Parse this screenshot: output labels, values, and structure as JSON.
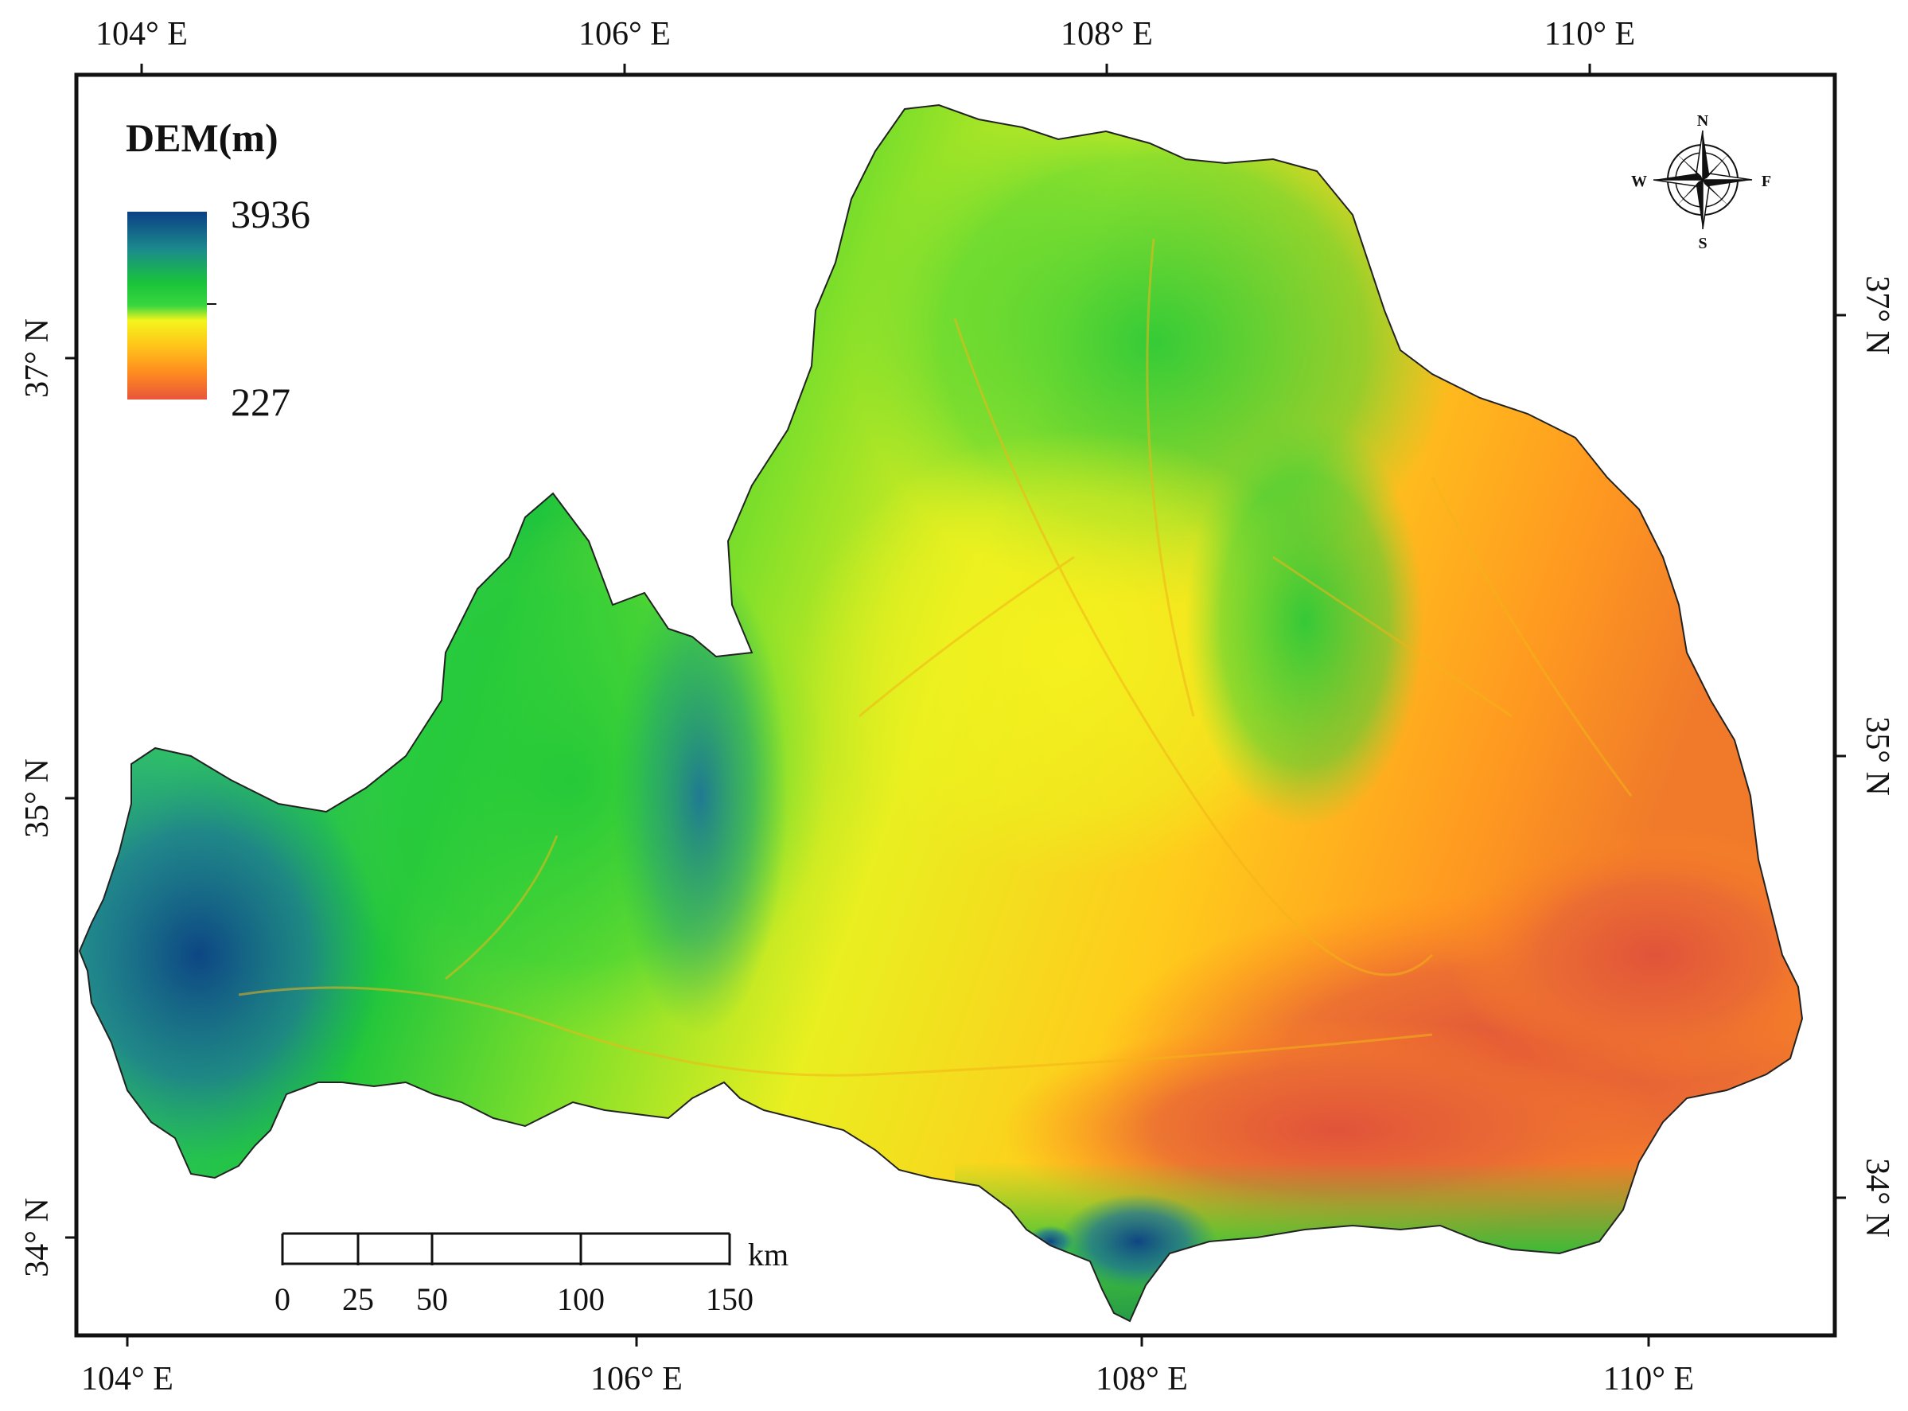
{
  "map": {
    "legend": {
      "title": "DEM(m)",
      "max_label": "3936",
      "min_label": "227",
      "ramp_colors": [
        "#0b3f86",
        "#1b8a8c",
        "#19c43a",
        "#39d63f",
        "#f4f51d",
        "#ffc21a",
        "#ff8a1f",
        "#e8553a"
      ]
    },
    "graticule": {
      "top_lon_labels": [
        "104° E",
        "106° E",
        "108° E",
        "110° E"
      ],
      "bottom_lon_labels": [
        "104° E",
        "106° E",
        "108° E",
        "110° E"
      ],
      "left_lat_labels": [
        "37° N",
        "35° N",
        "34° N"
      ],
      "right_lat_labels": [
        "37° N",
        "35° N",
        "34° N"
      ]
    },
    "compass": {
      "n": "N",
      "s": "S",
      "e": "F",
      "w": "W"
    },
    "scale_bar": {
      "labels": [
        "0",
        "25",
        "50",
        "100",
        "150"
      ],
      "unit": "km"
    },
    "colors": {
      "frame": "#111111",
      "high_elevation": "#0b3f86",
      "mid_elevation": "#19c43a",
      "low_mid_elevation": "#f4f51d",
      "low_elevation": "#e8553a"
    }
  }
}
